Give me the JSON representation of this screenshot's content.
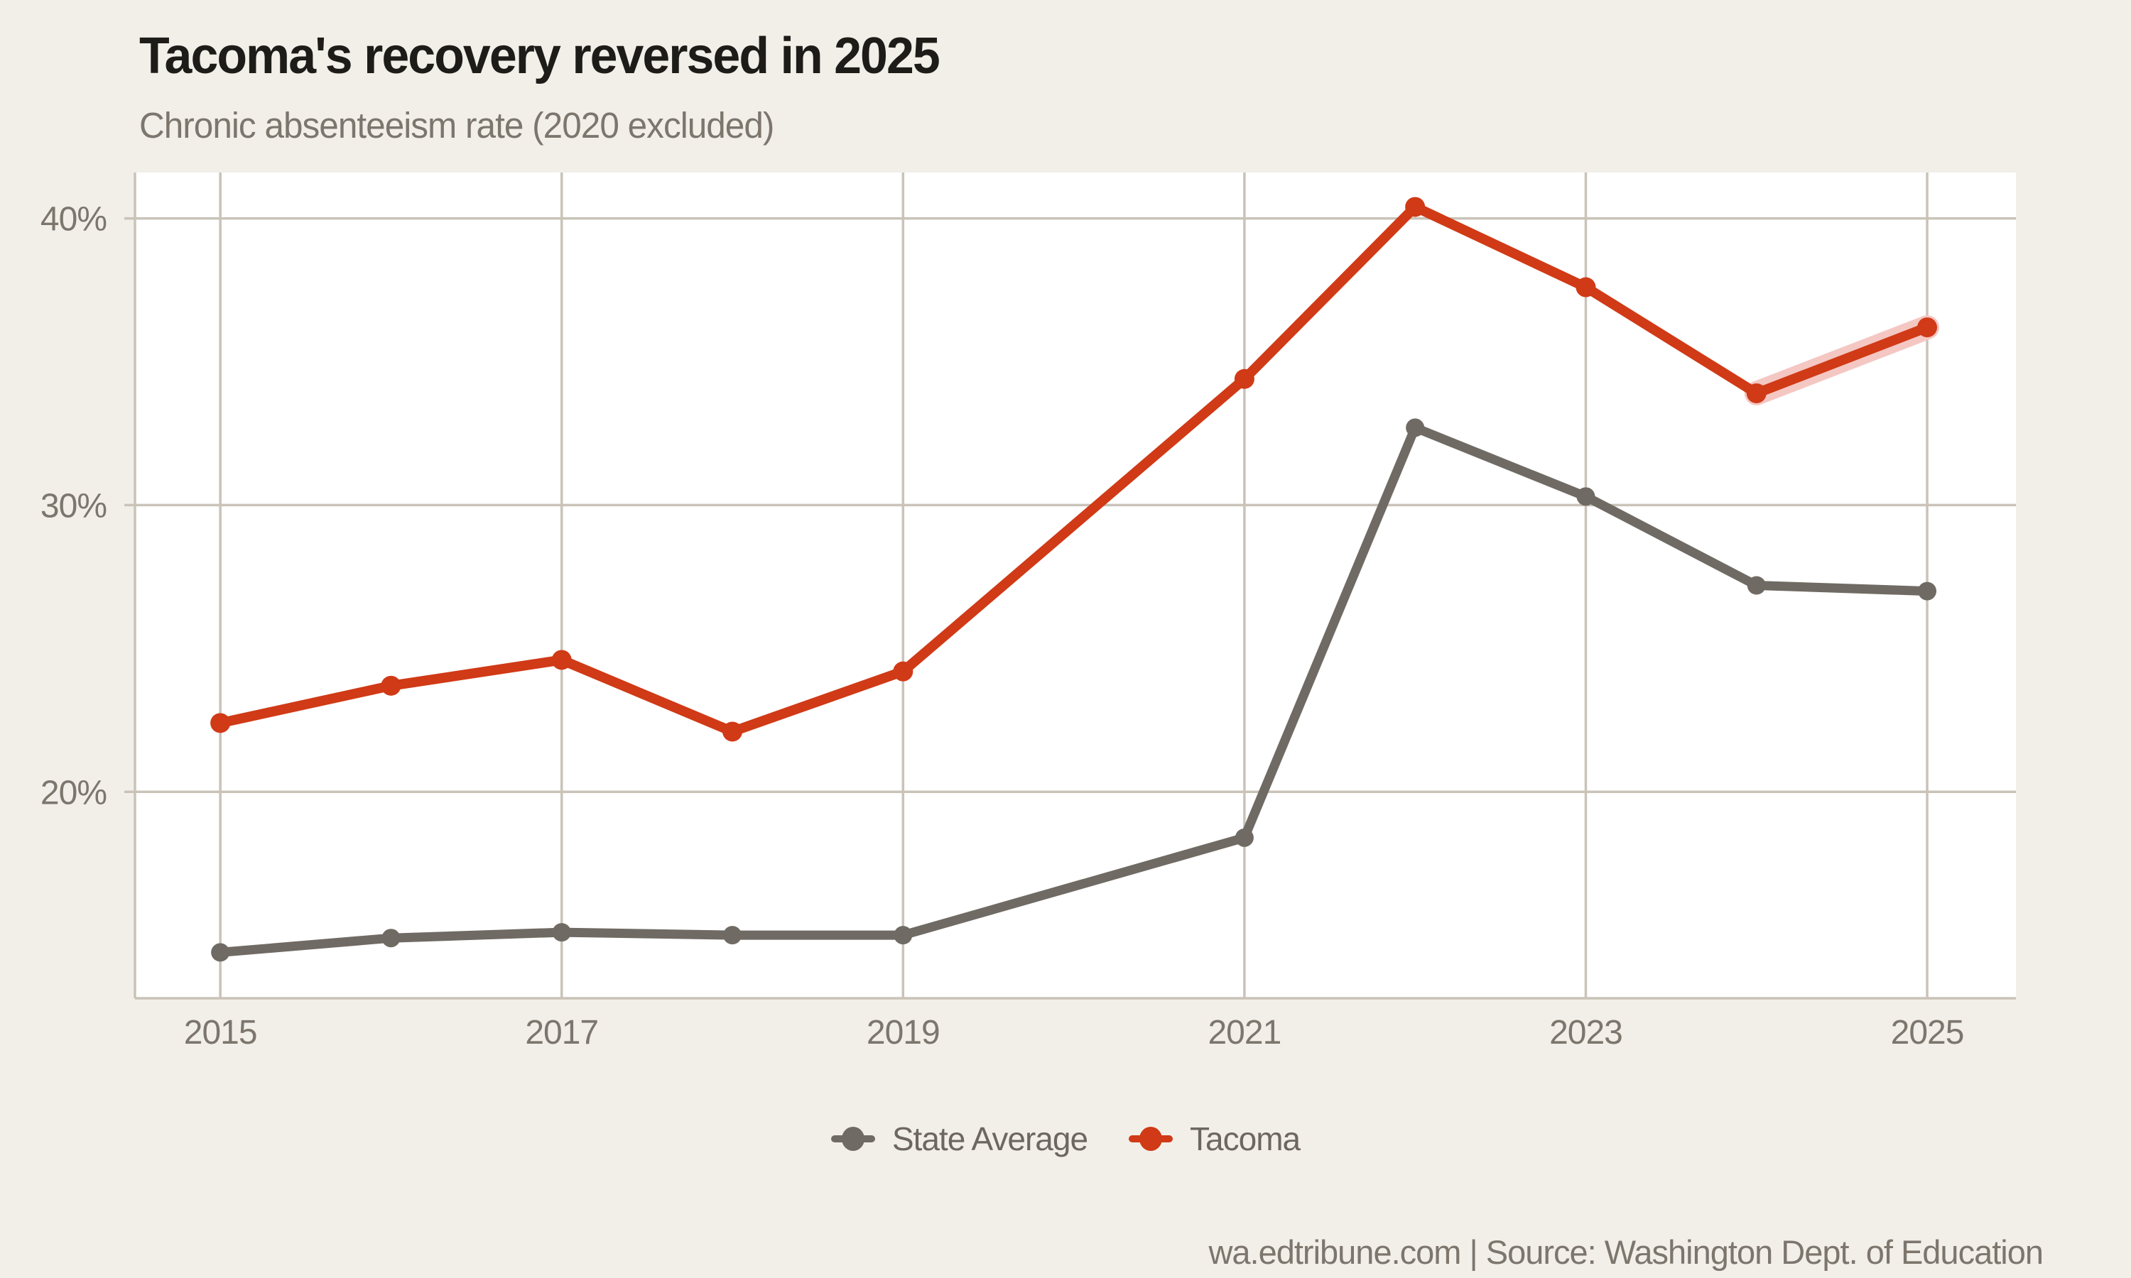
{
  "header": {
    "title": "Tacoma's recovery reversed in 2025",
    "subtitle": "Chronic absenteeism rate (2020 excluded)"
  },
  "legend": {
    "items": [
      {
        "label": "State Average",
        "color": "#6f6a63"
      },
      {
        "label": "Tacoma",
        "color": "#d03a16"
      }
    ]
  },
  "footer": {
    "text": "wa.edtribune.com | Source: Washington Dept. of Education"
  },
  "colors": {
    "background": "#f2efe9",
    "plot_background": "#ffffff",
    "grid": "#c9c3b8",
    "axis_text": "#7c766d",
    "title_text": "#1e1c19",
    "subtitle_text": "#7c766d",
    "state_average": "#6f6a63",
    "tacoma": "#d03a16",
    "highlight": "#f4c7c3"
  },
  "chart_data": {
    "type": "line",
    "title": "Tacoma's recovery reversed in 2025",
    "subtitle": "Chronic absenteeism rate (2020 excluded)",
    "x": [
      2015,
      2016,
      2017,
      2018,
      2019,
      2021,
      2022,
      2023,
      2024,
      2025
    ],
    "excluded_year": 2020,
    "series": [
      {
        "name": "State Average",
        "color": "#6f6a63",
        "values": [
          14.4,
          14.9,
          15.1,
          15.0,
          15.0,
          18.4,
          32.7,
          30.3,
          27.2,
          27.0
        ]
      },
      {
        "name": "Tacoma",
        "color": "#d03a16",
        "values": [
          22.4,
          23.7,
          24.6,
          22.1,
          24.2,
          34.4,
          40.4,
          37.6,
          33.9,
          36.2
        ]
      }
    ],
    "xticks": [
      2015,
      2017,
      2019,
      2021,
      2023,
      2025
    ],
    "yticks": [
      {
        "value": 20,
        "label": "20%"
      },
      {
        "value": 30,
        "label": "30%"
      },
      {
        "value": 40,
        "label": "40%"
      }
    ],
    "xlim": [
      2014.5,
      2025.52
    ],
    "ylim": [
      12.8,
      41.6
    ],
    "grid": true,
    "legend_position": "bottom",
    "highlight_segment": {
      "series": "Tacoma",
      "from": 2024,
      "to": 2025
    }
  }
}
